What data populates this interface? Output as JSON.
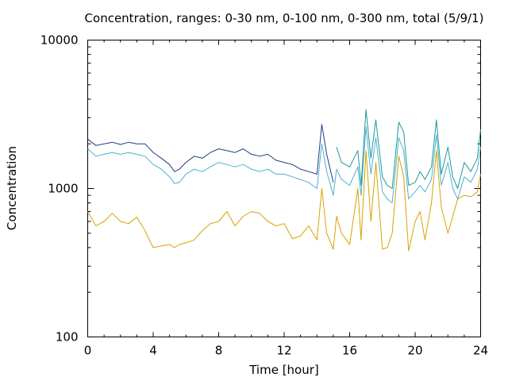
{
  "chart_data": {
    "type": "line",
    "title": "Concentration, ranges: 0-30 nm, 0-100 nm, 0-300 nm, total (5/9/1)",
    "xlabel": "Time [hour]",
    "ylabel": "Concentration",
    "xlim": [
      0,
      24
    ],
    "ylim": [
      100,
      10000
    ],
    "yscale": "log",
    "grid": false,
    "legend": "none",
    "x_ticks": [
      "0",
      "4",
      "8",
      "12",
      "16",
      "20",
      "24"
    ],
    "y_ticks": [
      "100",
      "1000",
      "10000"
    ],
    "series": [
      {
        "color": "#1f3a8a",
        "x": [
          0,
          0.5,
          1,
          1.5,
          2,
          2.5,
          3,
          3.5,
          4,
          4.5,
          5,
          5.3,
          5.6,
          6,
          6.5,
          7,
          7.5,
          8,
          8.5,
          9,
          9.5,
          10,
          10.5,
          11,
          11.5,
          12,
          12.5,
          13,
          13.5,
          14,
          14.3,
          14.6,
          15
        ],
        "y": [
          2150,
          1950,
          2000,
          2050,
          1980,
          2050,
          2000,
          2000,
          1750,
          1600,
          1450,
          1300,
          1350,
          1500,
          1650,
          1600,
          1750,
          1850,
          1800,
          1750,
          1850,
          1700,
          1650,
          1700,
          1550,
          1500,
          1450,
          1350,
          1300,
          1250,
          2700,
          1700,
          1100
        ]
      },
      {
        "color": "#1a9a9a",
        "x": [
          15.2,
          15.5,
          16,
          16.5,
          16.7,
          17,
          17.3,
          17.6,
          18,
          18.3,
          18.6,
          19,
          19.3,
          19.6,
          20,
          20.3,
          20.6,
          21,
          21.3,
          21.6,
          22,
          22.3,
          22.6,
          23,
          23.4,
          23.8,
          24
        ],
        "y": [
          1900,
          1500,
          1400,
          1800,
          1050,
          3400,
          1600,
          2900,
          1200,
          1050,
          1000,
          2800,
          2400,
          1050,
          1100,
          1300,
          1150,
          1400,
          2900,
          1250,
          1900,
          1200,
          1000,
          1500,
          1300,
          1600,
          2500
        ]
      },
      {
        "color": "#4fb0d0",
        "x": [
          0,
          0.5,
          1,
          1.5,
          2,
          2.5,
          3,
          3.5,
          4,
          4.5,
          5,
          5.3,
          5.6,
          6,
          6.5,
          7,
          7.5,
          8,
          8.5,
          9,
          9.5,
          10,
          10.5,
          11,
          11.5,
          12,
          12.5,
          13,
          13.5,
          14,
          14.3,
          14.6,
          15,
          15.2,
          15.5,
          16,
          16.5,
          16.7,
          17,
          17.3,
          17.6,
          18,
          18.3,
          18.6,
          19,
          19.3,
          19.6,
          20,
          20.3,
          20.6,
          21,
          21.3,
          21.6,
          22,
          22.3,
          22.6,
          23,
          23.4,
          23.8,
          24
        ],
        "y": [
          1850,
          1650,
          1700,
          1750,
          1700,
          1750,
          1700,
          1650,
          1450,
          1350,
          1200,
          1080,
          1100,
          1250,
          1350,
          1300,
          1400,
          1500,
          1450,
          1400,
          1450,
          1350,
          1300,
          1350,
          1250,
          1250,
          1200,
          1150,
          1100,
          1000,
          2000,
          1300,
          900,
          1350,
          1150,
          1050,
          1400,
          900,
          2600,
          1250,
          2200,
          950,
          850,
          800,
          2200,
          1800,
          850,
          950,
          1050,
          950,
          1150,
          2300,
          1050,
          1500,
          1000,
          850,
          1200,
          1100,
          1350,
          1900
        ]
      },
      {
        "color": "#d9a200",
        "x": [
          0,
          0.5,
          1,
          1.5,
          2,
          2.5,
          3,
          3.5,
          4,
          4.5,
          5,
          5.3,
          5.6,
          6,
          6.5,
          7,
          7.5,
          8,
          8.5,
          9,
          9.5,
          10,
          10.5,
          11,
          11.5,
          12,
          12.5,
          13,
          13.5,
          14,
          14.3,
          14.6,
          15,
          15.2,
          15.5,
          16,
          16.5,
          16.7,
          17,
          17.3,
          17.6,
          18,
          18.3,
          18.6,
          19,
          19.3,
          19.6,
          20,
          20.3,
          20.6,
          21,
          21.3,
          21.6,
          22,
          22.3,
          22.6,
          23,
          23.4,
          23.8,
          24
        ],
        "y": [
          700,
          560,
          600,
          680,
          600,
          580,
          640,
          520,
          400,
          410,
          420,
          400,
          420,
          430,
          450,
          520,
          580,
          600,
          700,
          560,
          650,
          700,
          680,
          600,
          560,
          580,
          460,
          480,
          560,
          450,
          1000,
          500,
          390,
          650,
          500,
          420,
          1000,
          450,
          1800,
          600,
          1500,
          390,
          400,
          500,
          1650,
          1200,
          380,
          600,
          700,
          450,
          800,
          1800,
          750,
          500,
          650,
          850,
          900,
          880,
          950,
          1250
        ]
      }
    ]
  }
}
